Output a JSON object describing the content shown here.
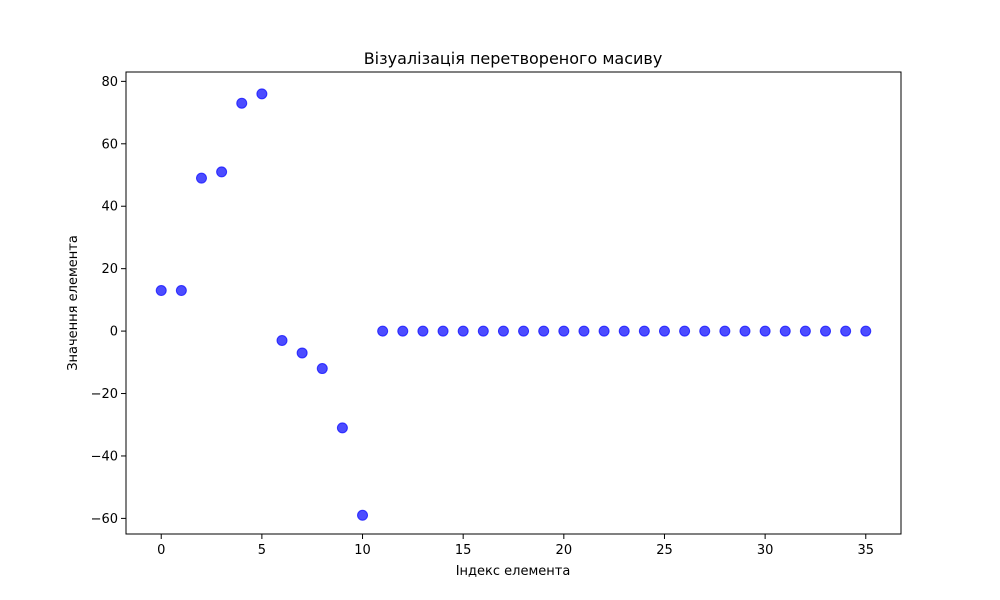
{
  "chart_data": {
    "type": "scatter",
    "title": "Візуалізація перетвореного масиву",
    "xlabel": "Індекс елемента",
    "ylabel": "Значення елемента",
    "xlim": [
      -1.75,
      36.75
    ],
    "ylim": [
      -65,
      83
    ],
    "xticks": [
      0,
      5,
      10,
      15,
      20,
      25,
      30,
      35
    ],
    "yticks": [
      -60,
      -40,
      -20,
      0,
      20,
      40,
      60,
      80
    ],
    "xtick_labels": [
      "0",
      "5",
      "10",
      "15",
      "20",
      "25",
      "30",
      "35"
    ],
    "ytick_labels": [
      "−60",
      "−40",
      "−20",
      "0",
      "20",
      "40",
      "60",
      "80"
    ],
    "grid": false,
    "marker_color": "#0000ff",
    "marker_opacity": 0.7,
    "series": [
      {
        "x": [
          0,
          1,
          2,
          3,
          4,
          5,
          6,
          7,
          8,
          9,
          10,
          11,
          12,
          13,
          14,
          15,
          16,
          17,
          18,
          19,
          20,
          21,
          22,
          23,
          24,
          25,
          26,
          27,
          28,
          29,
          30,
          31,
          32,
          33,
          34,
          35
        ],
        "y": [
          13,
          13,
          49,
          51,
          73,
          76,
          -3,
          -7,
          -12,
          -31,
          -59,
          0,
          0,
          0,
          0,
          0,
          0,
          0,
          0,
          0,
          0,
          0,
          0,
          0,
          0,
          0,
          0,
          0,
          0,
          0,
          0,
          0,
          0,
          0,
          0,
          0
        ]
      }
    ]
  }
}
